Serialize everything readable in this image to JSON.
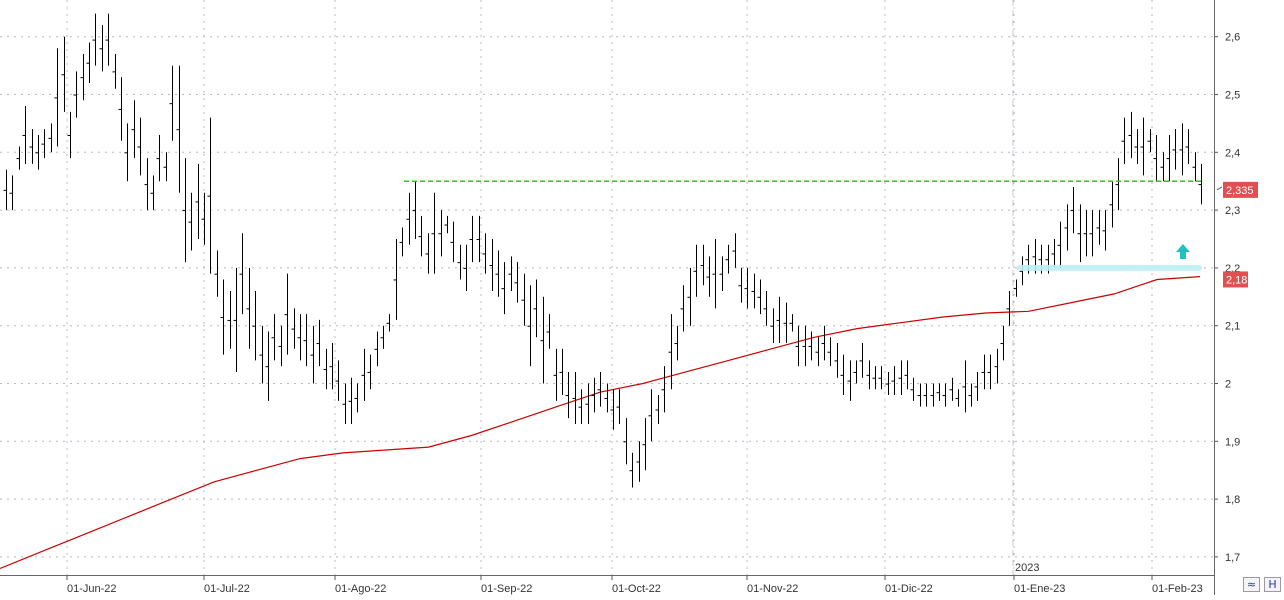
{
  "chart_data": {
    "type": "bar",
    "subtype": "ohlc",
    "grid": true,
    "price_axis": {
      "ylim": [
        1.67,
        2.65
      ],
      "ticks": [
        1.7,
        1.8,
        1.9,
        2.0,
        2.1,
        2.2,
        2.3,
        2.4,
        2.5,
        2.6
      ],
      "tick_labels": [
        "1,7",
        "1,8",
        "1,9",
        "2",
        "2,1",
        "2,2",
        "2,3",
        "2,4",
        "2,5",
        "2,6"
      ]
    },
    "time_axis": {
      "labels": [
        "01-Jun-22",
        "01-Jul-22",
        "01-Ago-22",
        "01-Sep-22",
        "01-Oct-22",
        "01-Nov-22",
        "01-Dic-22",
        "01-Ene-23",
        "01-Feb-23"
      ],
      "year_marker": "2023"
    },
    "last_price_label": "2,335",
    "moving_average_label": "2,18",
    "series_color": "#000000",
    "moving_average_color": "#cc0000",
    "resistance_color": "#22cc22",
    "support_zone_color": "#bfeef5",
    "arrow_color": "#20c0c0",
    "price_bars": [
      {
        "h": 2.37,
        "l": 2.3
      },
      {
        "h": 2.36,
        "l": 2.3
      },
      {
        "h": 2.41,
        "l": 2.37
      },
      {
        "h": 2.48,
        "l": 2.38
      },
      {
        "h": 2.44,
        "l": 2.38
      },
      {
        "h": 2.43,
        "l": 2.37
      },
      {
        "h": 2.44,
        "l": 2.39
      },
      {
        "h": 2.45,
        "l": 2.4
      },
      {
        "h": 2.58,
        "l": 2.41
      },
      {
        "h": 2.6,
        "l": 2.47
      },
      {
        "h": 2.47,
        "l": 2.39
      },
      {
        "h": 2.54,
        "l": 2.46
      },
      {
        "h": 2.57,
        "l": 2.49
      },
      {
        "h": 2.59,
        "l": 2.52
      },
      {
        "h": 2.64,
        "l": 2.55
      },
      {
        "h": 2.62,
        "l": 2.54
      },
      {
        "h": 2.64,
        "l": 2.55
      },
      {
        "h": 2.57,
        "l": 2.51
      },
      {
        "h": 2.53,
        "l": 2.42
      },
      {
        "h": 2.45,
        "l": 2.35
      },
      {
        "h": 2.49,
        "l": 2.39
      },
      {
        "h": 2.46,
        "l": 2.36
      },
      {
        "h": 2.39,
        "l": 2.3
      },
      {
        "h": 2.36,
        "l": 2.3
      },
      {
        "h": 2.43,
        "l": 2.35
      },
      {
        "h": 2.4,
        "l": 2.35
      },
      {
        "h": 2.55,
        "l": 2.42
      },
      {
        "h": 2.55,
        "l": 2.33
      },
      {
        "h": 2.39,
        "l": 2.21
      },
      {
        "h": 2.33,
        "l": 2.23
      },
      {
        "h": 2.38,
        "l": 2.25
      },
      {
        "h": 2.33,
        "l": 2.24
      },
      {
        "h": 2.46,
        "l": 2.19
      },
      {
        "h": 2.23,
        "l": 2.15
      },
      {
        "h": 2.18,
        "l": 2.05
      },
      {
        "h": 2.16,
        "l": 2.06
      },
      {
        "h": 2.2,
        "l": 2.02
      },
      {
        "h": 2.26,
        "l": 2.12
      },
      {
        "h": 2.2,
        "l": 2.06
      },
      {
        "h": 2.16,
        "l": 2.04
      },
      {
        "h": 2.1,
        "l": 2.0
      },
      {
        "h": 2.09,
        "l": 1.97
      },
      {
        "h": 2.12,
        "l": 2.04
      },
      {
        "h": 2.1,
        "l": 2.03
      },
      {
        "h": 2.19,
        "l": 2.05
      },
      {
        "h": 2.13,
        "l": 2.06
      },
      {
        "h": 2.12,
        "l": 2.04
      },
      {
        "h": 2.12,
        "l": 2.03
      },
      {
        "h": 2.1,
        "l": 2.0
      },
      {
        "h": 2.11,
        "l": 2.03
      },
      {
        "h": 2.06,
        "l": 1.99
      },
      {
        "h": 2.07,
        "l": 1.99
      },
      {
        "h": 2.04,
        "l": 1.97
      },
      {
        "h": 2.0,
        "l": 1.93
      },
      {
        "h": 2.01,
        "l": 1.93
      },
      {
        "h": 2.0,
        "l": 1.95
      },
      {
        "h": 2.06,
        "l": 1.97
      },
      {
        "h": 2.05,
        "l": 1.99
      },
      {
        "h": 2.09,
        "l": 2.03
      },
      {
        "h": 2.1,
        "l": 2.06
      },
      {
        "h": 2.12,
        "l": 2.09
      },
      {
        "h": 2.25,
        "l": 2.11
      },
      {
        "h": 2.27,
        "l": 2.22
      },
      {
        "h": 2.33,
        "l": 2.24
      },
      {
        "h": 2.35,
        "l": 2.25
      },
      {
        "h": 2.29,
        "l": 2.22
      },
      {
        "h": 2.26,
        "l": 2.19
      },
      {
        "h": 2.33,
        "l": 2.19
      },
      {
        "h": 2.3,
        "l": 2.22
      },
      {
        "h": 2.29,
        "l": 2.26
      },
      {
        "h": 2.28,
        "l": 2.21
      },
      {
        "h": 2.24,
        "l": 2.18
      },
      {
        "h": 2.24,
        "l": 2.16
      },
      {
        "h": 2.29,
        "l": 2.21
      },
      {
        "h": 2.29,
        "l": 2.21
      },
      {
        "h": 2.26,
        "l": 2.19
      },
      {
        "h": 2.25,
        "l": 2.16
      },
      {
        "h": 2.23,
        "l": 2.15
      },
      {
        "h": 2.21,
        "l": 2.12
      },
      {
        "h": 2.22,
        "l": 2.16
      },
      {
        "h": 2.21,
        "l": 2.14
      },
      {
        "h": 2.19,
        "l": 2.1
      },
      {
        "h": 2.17,
        "l": 2.03
      },
      {
        "h": 2.18,
        "l": 2.08
      },
      {
        "h": 2.15,
        "l": 2.0
      },
      {
        "h": 2.12,
        "l": 2.06
      },
      {
        "h": 2.06,
        "l": 1.97
      },
      {
        "h": 2.06,
        "l": 1.98
      },
      {
        "h": 2.02,
        "l": 1.94
      },
      {
        "h": 2.02,
        "l": 1.93
      },
      {
        "h": 1.99,
        "l": 1.93
      },
      {
        "h": 2.0,
        "l": 1.93
      },
      {
        "h": 2.01,
        "l": 1.95
      },
      {
        "h": 2.02,
        "l": 1.96
      },
      {
        "h": 2.0,
        "l": 1.95
      },
      {
        "h": 1.99,
        "l": 1.92
      },
      {
        "h": 1.99,
        "l": 1.93
      },
      {
        "h": 1.94,
        "l": 1.86
      },
      {
        "h": 1.88,
        "l": 1.82
      },
      {
        "h": 1.9,
        "l": 1.83
      },
      {
        "h": 1.94,
        "l": 1.85
      },
      {
        "h": 1.99,
        "l": 1.9
      },
      {
        "h": 1.98,
        "l": 1.93
      },
      {
        "h": 2.03,
        "l": 1.95
      },
      {
        "h": 2.12,
        "l": 1.99
      },
      {
        "h": 2.1,
        "l": 2.04
      },
      {
        "h": 2.17,
        "l": 2.09
      },
      {
        "h": 2.2,
        "l": 2.1
      },
      {
        "h": 2.24,
        "l": 2.15
      },
      {
        "h": 2.24,
        "l": 2.17
      },
      {
        "h": 2.22,
        "l": 2.15
      },
      {
        "h": 2.25,
        "l": 2.13
      },
      {
        "h": 2.22,
        "l": 2.16
      },
      {
        "h": 2.24,
        "l": 2.19
      },
      {
        "h": 2.26,
        "l": 2.2
      },
      {
        "h": 2.2,
        "l": 2.14
      },
      {
        "h": 2.2,
        "l": 2.13
      },
      {
        "h": 2.19,
        "l": 2.13
      },
      {
        "h": 2.18,
        "l": 2.12
      },
      {
        "h": 2.16,
        "l": 2.1
      },
      {
        "h": 2.13,
        "l": 2.07
      },
      {
        "h": 2.15,
        "l": 2.07
      },
      {
        "h": 2.14,
        "l": 2.07
      },
      {
        "h": 2.12,
        "l": 2.09
      },
      {
        "h": 2.1,
        "l": 2.03
      },
      {
        "h": 2.1,
        "l": 2.03
      },
      {
        "h": 2.09,
        "l": 2.04
      },
      {
        "h": 2.08,
        "l": 2.03
      },
      {
        "h": 2.1,
        "l": 2.04
      },
      {
        "h": 2.08,
        "l": 2.03
      },
      {
        "h": 2.07,
        "l": 2.01
      },
      {
        "h": 2.05,
        "l": 1.98
      },
      {
        "h": 2.04,
        "l": 1.97
      },
      {
        "h": 2.04,
        "l": 2.0
      },
      {
        "h": 2.07,
        "l": 2.01
      },
      {
        "h": 2.04,
        "l": 1.99
      },
      {
        "h": 2.03,
        "l": 1.99
      },
      {
        "h": 2.03,
        "l": 1.99
      },
      {
        "h": 2.02,
        "l": 1.98
      },
      {
        "h": 2.03,
        "l": 1.98
      },
      {
        "h": 2.04,
        "l": 1.98
      },
      {
        "h": 2.04,
        "l": 1.99
      },
      {
        "h": 2.01,
        "l": 1.97
      },
      {
        "h": 2.0,
        "l": 1.96
      },
      {
        "h": 2.0,
        "l": 1.96
      },
      {
        "h": 2.0,
        "l": 1.96
      },
      {
        "h": 2.0,
        "l": 1.97
      },
      {
        "h": 2.0,
        "l": 1.96
      },
      {
        "h": 2.01,
        "l": 1.97
      },
      {
        "h": 1.99,
        "l": 1.96
      },
      {
        "h": 2.04,
        "l": 1.95
      },
      {
        "h": 2.0,
        "l": 1.96
      },
      {
        "h": 2.02,
        "l": 1.97
      },
      {
        "h": 2.05,
        "l": 1.99
      },
      {
        "h": 2.05,
        "l": 1.99
      },
      {
        "h": 2.06,
        "l": 2.0
      },
      {
        "h": 2.1,
        "l": 2.04
      },
      {
        "h": 2.16,
        "l": 2.1
      },
      {
        "h": 2.18,
        "l": 2.15
      },
      {
        "h": 2.22,
        "l": 2.17
      },
      {
        "h": 2.24,
        "l": 2.19
      },
      {
        "h": 2.25,
        "l": 2.19
      },
      {
        "h": 2.24,
        "l": 2.19
      },
      {
        "h": 2.24,
        "l": 2.19
      },
      {
        "h": 2.25,
        "l": 2.2
      },
      {
        "h": 2.28,
        "l": 2.2
      },
      {
        "h": 2.31,
        "l": 2.23
      },
      {
        "h": 2.34,
        "l": 2.26
      },
      {
        "h": 2.31,
        "l": 2.21
      },
      {
        "h": 2.3,
        "l": 2.22
      },
      {
        "h": 2.3,
        "l": 2.22
      },
      {
        "h": 2.3,
        "l": 2.24
      },
      {
        "h": 2.3,
        "l": 2.23
      },
      {
        "h": 2.35,
        "l": 2.27
      },
      {
        "h": 2.39,
        "l": 2.3
      },
      {
        "h": 2.46,
        "l": 2.38
      },
      {
        "h": 2.47,
        "l": 2.39
      },
      {
        "h": 2.44,
        "l": 2.38
      },
      {
        "h": 2.46,
        "l": 2.36
      },
      {
        "h": 2.44,
        "l": 2.4
      },
      {
        "h": 2.43,
        "l": 2.35
      },
      {
        "h": 2.4,
        "l": 2.35
      },
      {
        "h": 2.43,
        "l": 2.35
      },
      {
        "h": 2.44,
        "l": 2.37
      },
      {
        "h": 2.45,
        "l": 2.36
      },
      {
        "h": 2.44,
        "l": 2.38
      },
      {
        "h": 2.4,
        "l": 2.35
      },
      {
        "h": 2.38,
        "l": 2.31
      }
    ],
    "moving_average": [
      1.68,
      1.71,
      1.74,
      1.77,
      1.8,
      1.83,
      1.85,
      1.87,
      1.88,
      1.885,
      1.89,
      1.91,
      1.935,
      1.96,
      1.985,
      2.0,
      2.02,
      2.04,
      2.06,
      2.08,
      2.095,
      2.105,
      2.115,
      2.122,
      2.125,
      2.14,
      2.155,
      2.18,
      2.185
    ],
    "resistance_level": 2.35,
    "support_zone": 2.2
  }
}
